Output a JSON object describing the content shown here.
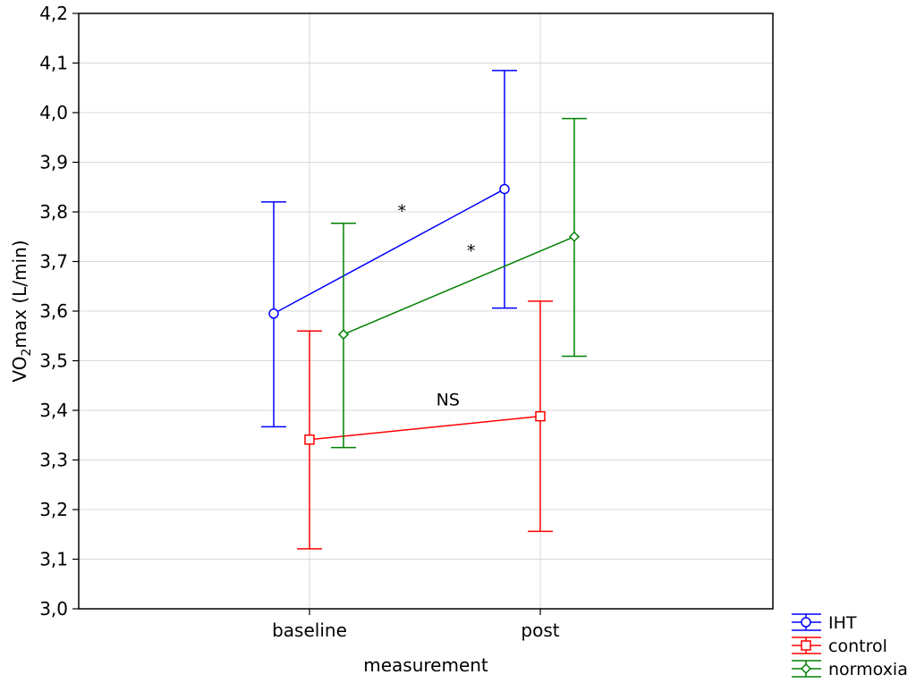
{
  "chart_data": {
    "type": "line",
    "title": "",
    "xlabel": "measurement",
    "ylabel_main": "VO",
    "ylabel_sub": "2",
    "ylabel_rest": "max (L/min)",
    "categories": [
      "baseline",
      "post"
    ],
    "ylim": [
      3.0,
      4.2
    ],
    "yticks": [
      "3,0",
      "3,1",
      "3,2",
      "3,3",
      "3,4",
      "3,5",
      "3,6",
      "3,7",
      "3,8",
      "3,9",
      "4,0",
      "4,1",
      "4,2"
    ],
    "grid": true,
    "legend_position": "bottom-right outside",
    "series": [
      {
        "name": "IHT",
        "color": "#0000ff",
        "marker": "circle",
        "values": [
          3.595,
          3.846
        ],
        "err_low": [
          3.367,
          3.606
        ],
        "err_high": [
          3.82,
          4.085
        ]
      },
      {
        "name": "control",
        "color": "#ff0000",
        "marker": "square",
        "values": [
          3.341,
          3.388
        ],
        "err_low": [
          3.121,
          3.156
        ],
        "err_high": [
          3.56,
          3.62
        ]
      },
      {
        "name": "normoxia",
        "color": "#008000",
        "marker": "diamond",
        "values": [
          3.553,
          3.75
        ],
        "err_low": [
          3.325,
          3.509
        ],
        "err_high": [
          3.777,
          3.988
        ]
      }
    ],
    "annotations": [
      {
        "text": "*",
        "near": "IHT",
        "x_category": 0.4,
        "y": 3.79
      },
      {
        "text": "*",
        "near": "normoxia",
        "x_category": 0.7,
        "y": 3.71
      },
      {
        "text": "NS",
        "near": "control",
        "x_category": 0.6,
        "y": 3.41
      }
    ]
  }
}
